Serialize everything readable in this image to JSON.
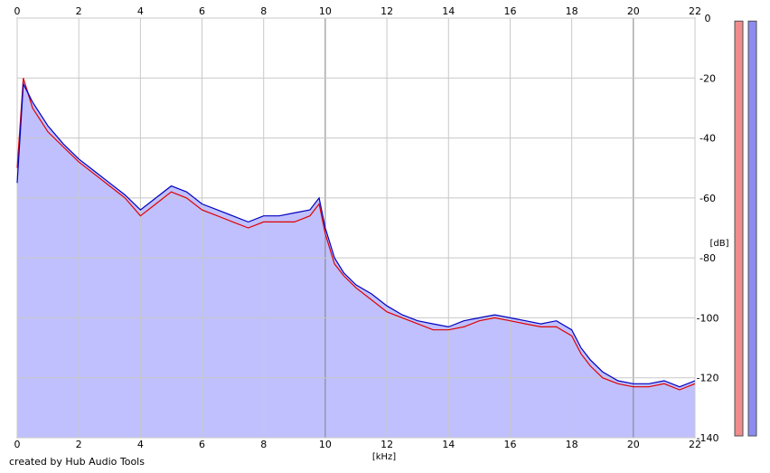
{
  "credit": "created by Hub Audio Tools",
  "chart_data": {
    "type": "area",
    "xlabel": "[kHz]",
    "ylabel": "[dB]",
    "xlim": [
      0,
      22
    ],
    "ylim": [
      -140,
      0
    ],
    "x_ticks": [
      0,
      2,
      4,
      6,
      8,
      10,
      12,
      14,
      16,
      18,
      20,
      22
    ],
    "y_ticks": [
      0,
      -20,
      -40,
      -60,
      -80,
      -100,
      -120,
      -140
    ],
    "grid": true,
    "colors": {
      "left_line": "#e00000",
      "right_line": "#0000c0",
      "fill": "#c0c0ff",
      "left_meter": "#f08c8c",
      "right_meter": "#8c8cf0",
      "grid": "#c8c8c8",
      "grid_major": "#808080"
    },
    "x": [
      0,
      0.2,
      0.5,
      1,
      1.5,
      2,
      2.5,
      3,
      3.5,
      4,
      4.5,
      5,
      5.5,
      6,
      6.5,
      7,
      7.5,
      8,
      8.5,
      9,
      9.5,
      9.8,
      10,
      10.3,
      10.6,
      11,
      11.5,
      12,
      12.5,
      13,
      13.5,
      14,
      14.5,
      15,
      15.5,
      16,
      16.5,
      17,
      17.5,
      18,
      18.3,
      18.6,
      19,
      19.5,
      20,
      20.5,
      21,
      21.5,
      22
    ],
    "series": [
      {
        "values": [
          -50,
          -20,
          -30,
          -38,
          -43,
          -48,
          -52,
          -56,
          -60,
          -66,
          -62,
          -58,
          -60,
          -64,
          -66,
          -68,
          -70,
          -68,
          -68,
          -68,
          -66,
          -62,
          -72,
          -82,
          -86,
          -90,
          -94,
          -98,
          -100,
          -102,
          -104,
          -104,
          -103,
          -101,
          -100,
          -101,
          -102,
          -103,
          -103,
          -106,
          -112,
          -116,
          -120,
          -122,
          -123,
          -123,
          -122,
          -124,
          -122
        ]
      },
      {
        "values": [
          -55,
          -22,
          -28,
          -36,
          -42,
          -47,
          -51,
          -55,
          -59,
          -64,
          -60,
          -56,
          -58,
          -62,
          -64,
          -66,
          -68,
          -66,
          -66,
          -65,
          -64,
          -60,
          -70,
          -80,
          -85,
          -89,
          -92,
          -96,
          -99,
          -101,
          -102,
          -103,
          -101,
          -100,
          -99,
          -100,
          -101,
          -102,
          -101,
          -104,
          -110,
          -114,
          -118,
          -121,
          -122,
          -122,
          -121,
          -123,
          -121
        ]
      }
    ],
    "meters": [
      {
        "value": -1
      },
      {
        "value": -1
      }
    ]
  }
}
